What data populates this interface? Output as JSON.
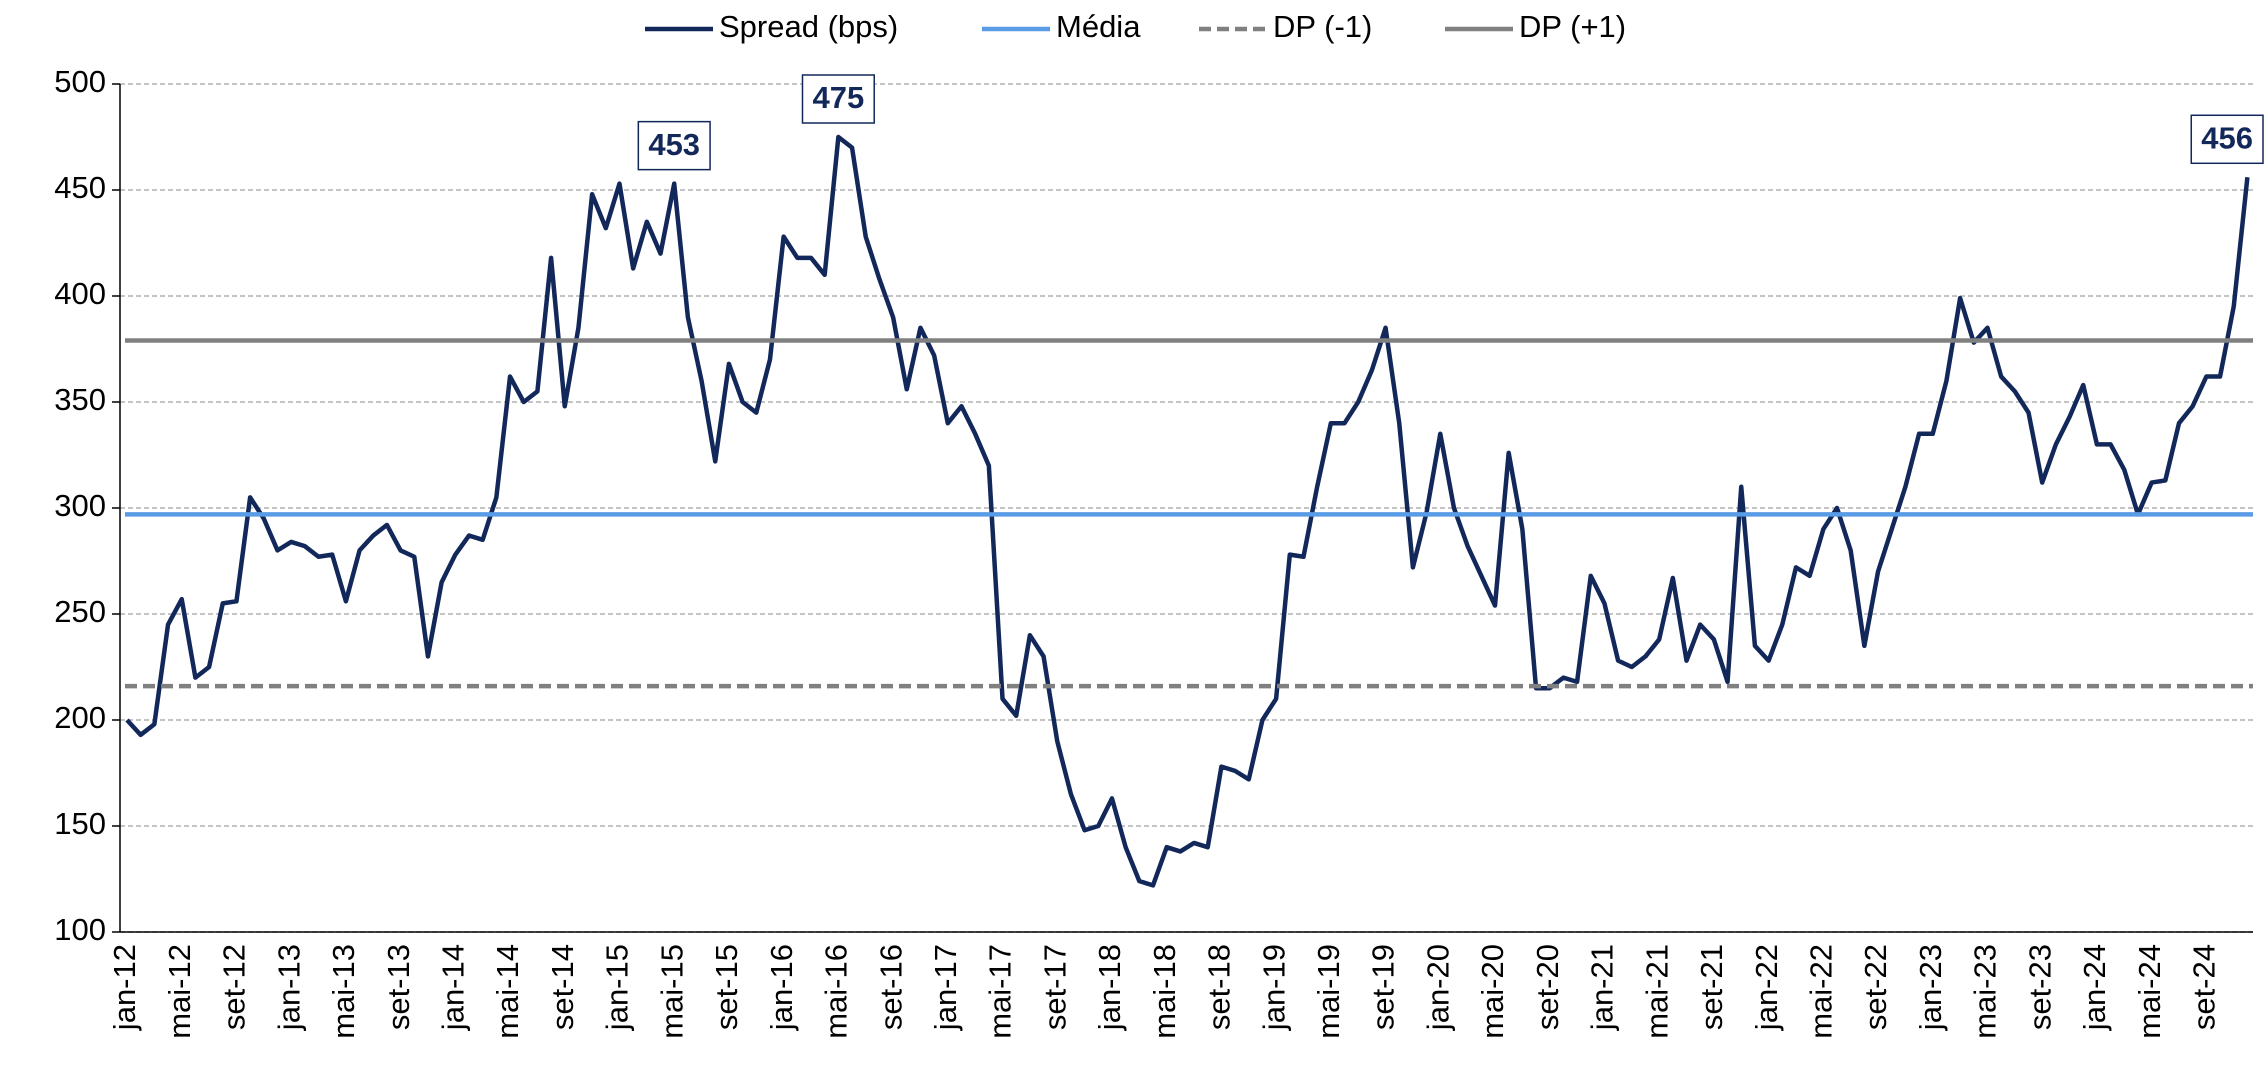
{
  "chart_data": {
    "type": "line",
    "categories": [
      "jan-12",
      null,
      null,
      null,
      "mai-12",
      null,
      null,
      null,
      "set-12",
      null,
      null,
      null,
      "jan-13",
      null,
      null,
      null,
      "mai-13",
      null,
      null,
      null,
      "set-13",
      null,
      null,
      null,
      "jan-14",
      null,
      null,
      null,
      "mai-14",
      null,
      null,
      null,
      "set-14",
      null,
      null,
      null,
      "jan-15",
      null,
      null,
      null,
      "mai-15",
      null,
      null,
      null,
      "set-15",
      null,
      null,
      null,
      "jan-16",
      null,
      null,
      null,
      "mai-16",
      null,
      null,
      null,
      "set-16",
      null,
      null,
      null,
      "jan-17",
      null,
      null,
      null,
      "mai-17",
      null,
      null,
      null,
      "set-17",
      null,
      null,
      null,
      "jan-18",
      null,
      null,
      null,
      "mai-18",
      null,
      null,
      null,
      "set-18",
      null,
      null,
      null,
      "jan-19",
      null,
      null,
      null,
      "mai-19",
      null,
      null,
      null,
      "set-19",
      null,
      null,
      null,
      "jan-20",
      null,
      null,
      null,
      "mai-20",
      null,
      null,
      null,
      "set-20",
      null,
      null,
      null,
      "jan-21",
      null,
      null,
      null,
      "mai-21",
      null,
      null,
      null,
      "set-21",
      null,
      null,
      null,
      "jan-22",
      null,
      null,
      null,
      "mai-22",
      null,
      null,
      null,
      "set-22",
      null,
      null,
      null,
      "jan-23",
      null,
      null,
      null,
      "mai-23",
      null,
      null,
      null,
      "set-23",
      null,
      null,
      null,
      "jan-24",
      null,
      null,
      null,
      "mai-24",
      null,
      null,
      null,
      "set-24",
      null,
      null,
      null
    ],
    "series": [
      {
        "name": "Spread (bps)",
        "color": "#13285a",
        "values": [
          200,
          193,
          198,
          245,
          257,
          220,
          225,
          255,
          256,
          305,
          295,
          280,
          284,
          282,
          277,
          278,
          256,
          280,
          287,
          292,
          280,
          277,
          230,
          265,
          278,
          287,
          285,
          305,
          362,
          350,
          355,
          418,
          348,
          385,
          448,
          432,
          453,
          413,
          435,
          420,
          453,
          390,
          360,
          322,
          368,
          350,
          345,
          370,
          428,
          418,
          418,
          410,
          475,
          470,
          428,
          408,
          390,
          356,
          385,
          372,
          340,
          348,
          335,
          320,
          210,
          202,
          240,
          230,
          190,
          165,
          148,
          150,
          163,
          140,
          124,
          122,
          140,
          138,
          142,
          140,
          178,
          176,
          172,
          200,
          210,
          278,
          277,
          310,
          340,
          340,
          350,
          365,
          385,
          340,
          272,
          298,
          335,
          300,
          282,
          268,
          254,
          326,
          290,
          215,
          215,
          220,
          218,
          268,
          255,
          228,
          225,
          230,
          238,
          267,
          228,
          245,
          238,
          218,
          310,
          235,
          228,
          245,
          272,
          268,
          290,
          300,
          280,
          235,
          270,
          290,
          310,
          335,
          335,
          360,
          399,
          378,
          385,
          362,
          355,
          345,
          312,
          330,
          343,
          358,
          330,
          330,
          318,
          297,
          312,
          313,
          340,
          348,
          362,
          362,
          395,
          456
        ]
      },
      {
        "name": "Média",
        "color": "#5a9be6",
        "value": 297
      },
      {
        "name": "DP (-1)",
        "color": "#808080",
        "value": 216,
        "dashed": true
      },
      {
        "name": "DP (+1)",
        "color": "#808080",
        "value": 379
      }
    ],
    "labeled_points": [
      40,
      52,
      155
    ],
    "ylim": [
      100,
      500
    ],
    "yticks": [
      100,
      150,
      200,
      250,
      300,
      350,
      400,
      450,
      500
    ],
    "grid": true
  }
}
